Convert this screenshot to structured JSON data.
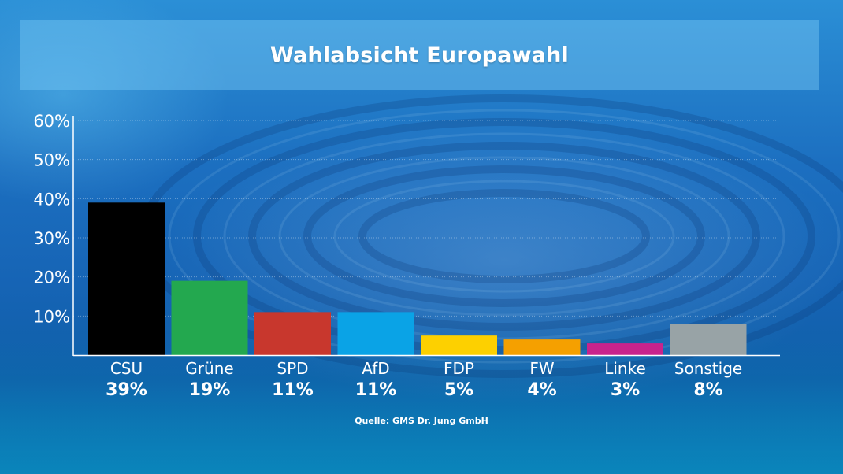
{
  "chart_data": {
    "type": "bar",
    "title": "Wahlabsicht Europawahl",
    "categories": [
      "CSU",
      "Grüne",
      "SPD",
      "AfD",
      "FDP",
      "FW",
      "Linke",
      "Sonstige"
    ],
    "values": [
      39,
      19,
      11,
      11,
      5,
      4,
      3,
      8
    ],
    "value_labels": [
      "39%",
      "19%",
      "11%",
      "11%",
      "5%",
      "4%",
      "3%",
      "8%"
    ],
    "colors": [
      "#000000",
      "#23a84f",
      "#c8372d",
      "#0aa3e6",
      "#fdd000",
      "#f5a000",
      "#c8238c",
      "#98a3a6"
    ],
    "yticks": [
      "10%",
      "20%",
      "30%",
      "40%",
      "50%",
      "60%"
    ],
    "ytick_values": [
      10,
      20,
      30,
      40,
      50,
      60
    ],
    "ylim": [
      0,
      60
    ],
    "xlabel": "",
    "ylabel": "",
    "grid": true,
    "source": "Quelle: GMS Dr. Jung GmbH"
  }
}
